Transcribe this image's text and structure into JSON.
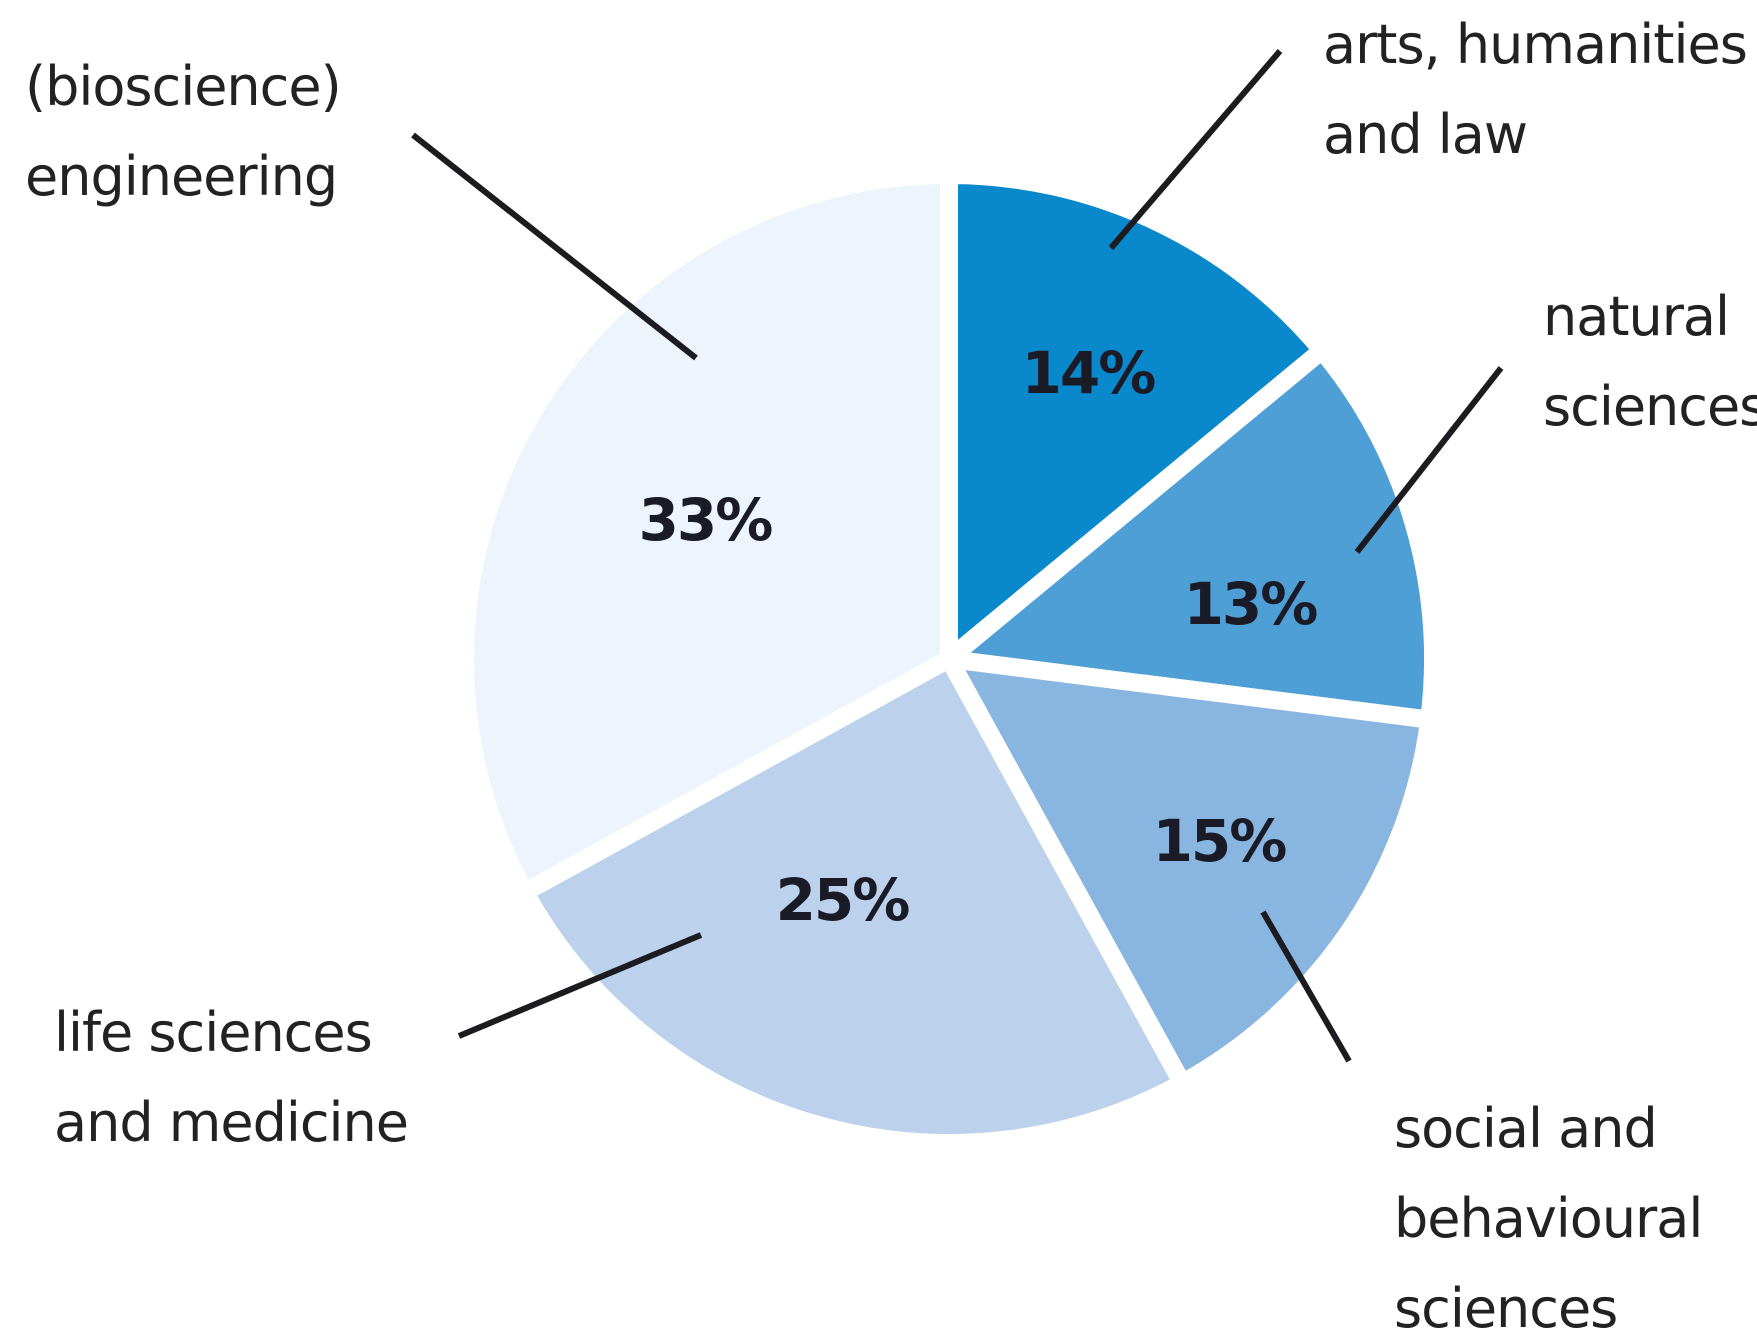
{
  "chart_data": {
    "type": "pie",
    "categories": [
      "arts, humanities and law",
      "natural sciences",
      "social and behavioural sciences",
      "life sciences and medicine",
      "(bioscience) engineering"
    ],
    "values": [
      14,
      13,
      15,
      25,
      33
    ],
    "value_labels": [
      "14%",
      "13%",
      "15%",
      "25%",
      "33%"
    ],
    "colors": [
      "#0a88cc",
      "#4d9fd6",
      "#89b5e1",
      "#bbd1ec",
      "#eef4fb"
    ]
  }
}
